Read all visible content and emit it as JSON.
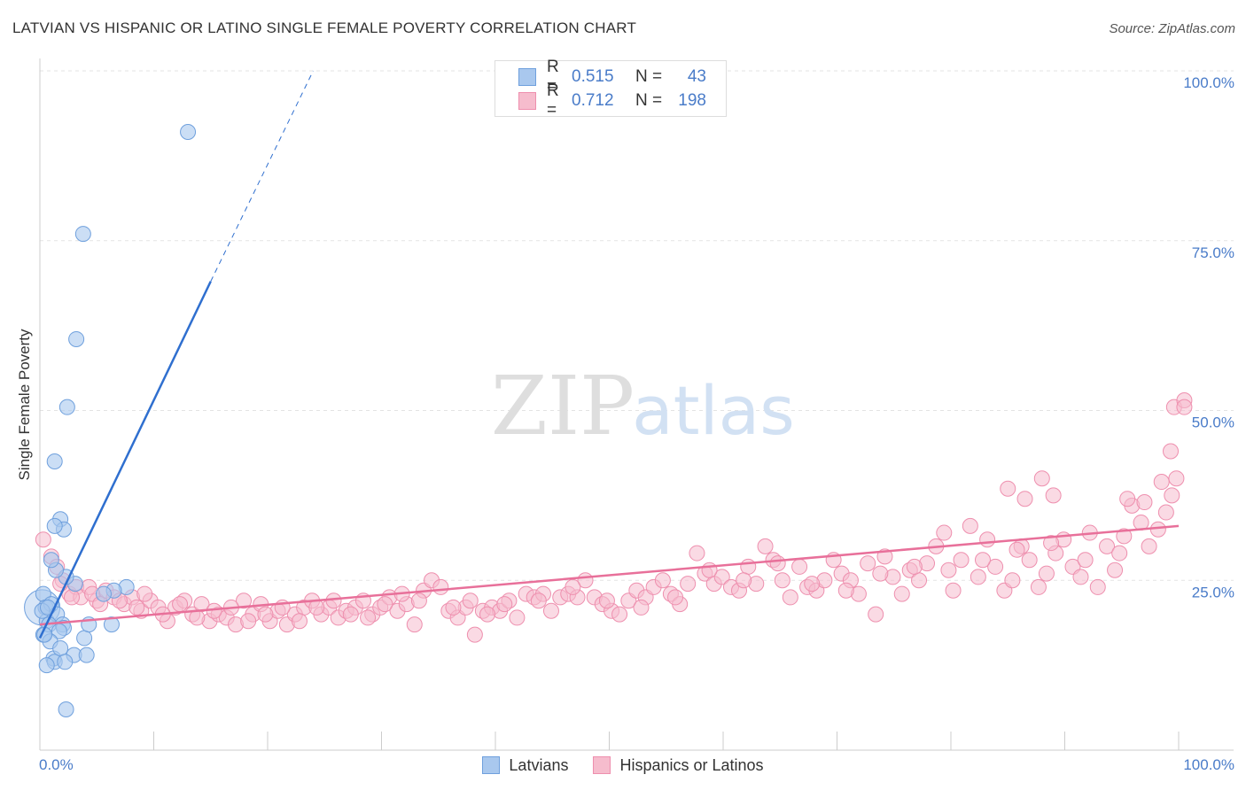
{
  "header": {
    "title": "LATVIAN VS HISPANIC OR LATINO SINGLE FEMALE POVERTY CORRELATION CHART",
    "source": "Source: ZipAtlas.com"
  },
  "watermark": {
    "zip": "ZIP",
    "atlas": "atlas"
  },
  "legend_top": {
    "rows": [
      {
        "r_label": "R =",
        "r_value": "0.515",
        "n_label": "N =",
        "n_value": "43"
      },
      {
        "r_label": "R =",
        "r_value": "0.712",
        "n_label": "N =",
        "n_value": "198"
      }
    ]
  },
  "legend_bottom": {
    "items": [
      "Latvians",
      "Hispanics or Latinos"
    ]
  },
  "colors": {
    "latvian_fill": "#a9c8ee",
    "latvian_stroke": "#6fa0dd",
    "latvian_line": "#2f6fcf",
    "hispanic_fill": "#f6bccd",
    "hispanic_stroke": "#ee8fae",
    "hispanic_line": "#e8709a",
    "tick_label": "#4a7cc9",
    "grid": "#e3e3e3"
  },
  "chart_data": {
    "type": "scatter",
    "title": "LATVIAN VS HISPANIC OR LATINO SINGLE FEMALE POVERTY CORRELATION CHART",
    "xlabel": "",
    "ylabel": "Single Female Poverty",
    "xlim": [
      0,
      100
    ],
    "ylim": [
      0,
      100
    ],
    "x_tick_labels": [
      "0.0%",
      "100.0%"
    ],
    "y_ticks": [
      {
        "value": 25,
        "label": "25.0%"
      },
      {
        "value": 50,
        "label": "50.0%"
      },
      {
        "value": 75,
        "label": "75.0%"
      },
      {
        "value": 100,
        "label": "100.0%"
      }
    ],
    "grid": true,
    "series": [
      {
        "name": "Latvians",
        "r": 0.515,
        "n": 43,
        "trend": {
          "x0": 0,
          "y0": 16.5,
          "x1": 15,
          "y1": 69,
          "dash_to": {
            "x": 24,
            "y": 100
          }
        },
        "points": [
          [
            13,
            91
          ],
          [
            3.8,
            76
          ],
          [
            3.2,
            60.5
          ],
          [
            2.4,
            50.5
          ],
          [
            1.3,
            42.5
          ],
          [
            1.8,
            34
          ],
          [
            2.1,
            32.5
          ],
          [
            1.3,
            33
          ],
          [
            0.3,
            23
          ],
          [
            0.5,
            21
          ],
          [
            0.6,
            19
          ],
          [
            0.3,
            17
          ],
          [
            1,
            21.5
          ],
          [
            1.5,
            20
          ],
          [
            0.8,
            18.5
          ],
          [
            2,
            18.5
          ],
          [
            2.1,
            18
          ],
          [
            1.7,
            17.5
          ],
          [
            0.9,
            16
          ],
          [
            1.2,
            13.5
          ],
          [
            1.3,
            13
          ],
          [
            0.6,
            12.5
          ],
          [
            1.8,
            15
          ],
          [
            3,
            14
          ],
          [
            4.1,
            14
          ],
          [
            3.9,
            16.5
          ],
          [
            4.3,
            18.5
          ],
          [
            6.3,
            18.5
          ],
          [
            7.6,
            24
          ],
          [
            6.5,
            23.5
          ],
          [
            5.6,
            23
          ],
          [
            3.1,
            24.5
          ],
          [
            2.3,
            25.5
          ],
          [
            1.4,
            26.5
          ],
          [
            1,
            28
          ],
          [
            0.2,
            20.5
          ],
          [
            0.4,
            17
          ],
          [
            0.7,
            21
          ],
          [
            2.2,
            13
          ],
          [
            2.3,
            6
          ]
        ]
      },
      {
        "name": "Hispanics or Latinos",
        "r": 0.712,
        "n": 198,
        "trend": {
          "x0": 0,
          "y0": 18.5,
          "x1": 100,
          "y1": 33
        },
        "points": [
          [
            0.3,
            31
          ],
          [
            1,
            28.5
          ],
          [
            1.5,
            27
          ],
          [
            2,
            25
          ],
          [
            2.6,
            23
          ],
          [
            3.2,
            24
          ],
          [
            3.6,
            22.5
          ],
          [
            4.3,
            24
          ],
          [
            5,
            22
          ],
          [
            5.8,
            23.5
          ],
          [
            6.5,
            22.5
          ],
          [
            7.4,
            21.5
          ],
          [
            8.1,
            22.5
          ],
          [
            8.9,
            20.5
          ],
          [
            9.7,
            22
          ],
          [
            10.4,
            21
          ],
          [
            11.2,
            19
          ],
          [
            11.9,
            21
          ],
          [
            12.7,
            22
          ],
          [
            13.4,
            20
          ],
          [
            14.2,
            21.5
          ],
          [
            14.9,
            19
          ],
          [
            15.7,
            20
          ],
          [
            16.4,
            19.5
          ],
          [
            17.2,
            18.5
          ],
          [
            17.9,
            22
          ],
          [
            18.7,
            20
          ],
          [
            19.4,
            21.5
          ],
          [
            20.2,
            19
          ],
          [
            20.9,
            20.5
          ],
          [
            21.7,
            18.5
          ],
          [
            22.4,
            20
          ],
          [
            23.2,
            21
          ],
          [
            23.9,
            22
          ],
          [
            24.7,
            20
          ],
          [
            25.4,
            21
          ],
          [
            26.2,
            19.5
          ],
          [
            26.9,
            20.5
          ],
          [
            27.7,
            21
          ],
          [
            28.4,
            22
          ],
          [
            29.2,
            20
          ],
          [
            29.9,
            21
          ],
          [
            30.7,
            22.5
          ],
          [
            31.4,
            20.5
          ],
          [
            32.2,
            21.5
          ],
          [
            32.9,
            18.5
          ],
          [
            33.7,
            23.5
          ],
          [
            34.4,
            25
          ],
          [
            35.2,
            24
          ],
          [
            35.9,
            20.5
          ],
          [
            36.7,
            19.5
          ],
          [
            37.4,
            21
          ],
          [
            38.2,
            17
          ],
          [
            38.9,
            20.5
          ],
          [
            39.7,
            21
          ],
          [
            40.4,
            20.5
          ],
          [
            41.2,
            22
          ],
          [
            41.9,
            19.5
          ],
          [
            42.7,
            23
          ],
          [
            43.4,
            22.5
          ],
          [
            44.2,
            23
          ],
          [
            44.9,
            20.5
          ],
          [
            45.7,
            22.5
          ],
          [
            46.4,
            23
          ],
          [
            47.2,
            22.5
          ],
          [
            47.9,
            25
          ],
          [
            48.7,
            22.5
          ],
          [
            49.4,
            21.5
          ],
          [
            50.2,
            20.5
          ],
          [
            50.9,
            20
          ],
          [
            51.7,
            22
          ],
          [
            52.4,
            23.5
          ],
          [
            53.2,
            22.5
          ],
          [
            53.9,
            24
          ],
          [
            54.7,
            25
          ],
          [
            55.4,
            23
          ],
          [
            56.2,
            21.5
          ],
          [
            56.9,
            24.5
          ],
          [
            57.7,
            29
          ],
          [
            58.4,
            26
          ],
          [
            59.2,
            24.5
          ],
          [
            59.9,
            25.5
          ],
          [
            60.7,
            24
          ],
          [
            61.4,
            23.5
          ],
          [
            62.2,
            27
          ],
          [
            62.9,
            24.5
          ],
          [
            63.7,
            30
          ],
          [
            64.4,
            28
          ],
          [
            65.2,
            25
          ],
          [
            65.9,
            22.5
          ],
          [
            66.7,
            27
          ],
          [
            67.4,
            24
          ],
          [
            68.2,
            23.5
          ],
          [
            68.9,
            25
          ],
          [
            69.7,
            28
          ],
          [
            70.4,
            26
          ],
          [
            71.2,
            25
          ],
          [
            71.9,
            23
          ],
          [
            72.7,
            27.5
          ],
          [
            73.4,
            20
          ],
          [
            74.2,
            28.5
          ],
          [
            74.9,
            25.5
          ],
          [
            75.7,
            23
          ],
          [
            76.4,
            26.5
          ],
          [
            77.2,
            25
          ],
          [
            77.9,
            27.5
          ],
          [
            78.7,
            30
          ],
          [
            79.4,
            32
          ],
          [
            80.2,
            23.5
          ],
          [
            80.9,
            28
          ],
          [
            81.7,
            33
          ],
          [
            82.4,
            25.5
          ],
          [
            83.2,
            31
          ],
          [
            83.9,
            27
          ],
          [
            84.7,
            23.5
          ],
          [
            85.4,
            25
          ],
          [
            86.2,
            30
          ],
          [
            86.9,
            28
          ],
          [
            87.7,
            24
          ],
          [
            88.4,
            26
          ],
          [
            89.2,
            29
          ],
          [
            89.9,
            31
          ],
          [
            90.7,
            27
          ],
          [
            91.4,
            25.5
          ],
          [
            92.2,
            32
          ],
          [
            92.9,
            24
          ],
          [
            93.7,
            30
          ],
          [
            94.4,
            26.5
          ],
          [
            95.2,
            31.5
          ],
          [
            95.9,
            36
          ],
          [
            96.7,
            33.5
          ],
          [
            97.4,
            30
          ],
          [
            98.2,
            32.5
          ],
          [
            98.9,
            35
          ],
          [
            99.4,
            37.5
          ],
          [
            99.8,
            40
          ],
          [
            85,
            38.5
          ],
          [
            86.5,
            37
          ],
          [
            88,
            40
          ],
          [
            89,
            37.5
          ],
          [
            95.5,
            37
          ],
          [
            97,
            36.5
          ],
          [
            98.5,
            39.5
          ],
          [
            99.3,
            44
          ],
          [
            99.6,
            50.5
          ],
          [
            100.5,
            51.5
          ],
          [
            101.2,
            50.5
          ],
          [
            1.8,
            24.5
          ],
          [
            2.8,
            22.5
          ],
          [
            4.6,
            23
          ],
          [
            5.3,
            21.5
          ],
          [
            7,
            22
          ],
          [
            8.5,
            21
          ],
          [
            9.2,
            23
          ],
          [
            10.8,
            20
          ],
          [
            12.3,
            21.5
          ],
          [
            13.8,
            19.5
          ],
          [
            15.3,
            20.5
          ],
          [
            16.8,
            21
          ],
          [
            18.3,
            19
          ],
          [
            19.8,
            20
          ],
          [
            21.3,
            21
          ],
          [
            22.8,
            19
          ],
          [
            24.3,
            21
          ],
          [
            25.8,
            22
          ],
          [
            27.3,
            20
          ],
          [
            28.8,
            19.5
          ],
          [
            30.3,
            21.5
          ],
          [
            31.8,
            23
          ],
          [
            33.3,
            22
          ],
          [
            36.3,
            21
          ],
          [
            37.8,
            22
          ],
          [
            39.3,
            20
          ],
          [
            40.8,
            21.5
          ],
          [
            43.8,
            22
          ],
          [
            46.8,
            24
          ],
          [
            49.8,
            22
          ],
          [
            52.8,
            21
          ],
          [
            55.8,
            22.5
          ],
          [
            58.8,
            26.5
          ],
          [
            61.8,
            25
          ],
          [
            64.8,
            27.5
          ],
          [
            67.8,
            24.5
          ],
          [
            70.8,
            23.5
          ],
          [
            73.8,
            26
          ],
          [
            76.8,
            27
          ],
          [
            79.8,
            26.5
          ],
          [
            82.8,
            28
          ],
          [
            85.8,
            29.5
          ],
          [
            88.8,
            30.5
          ],
          [
            91.8,
            28
          ],
          [
            94.8,
            29
          ]
        ]
      }
    ]
  }
}
